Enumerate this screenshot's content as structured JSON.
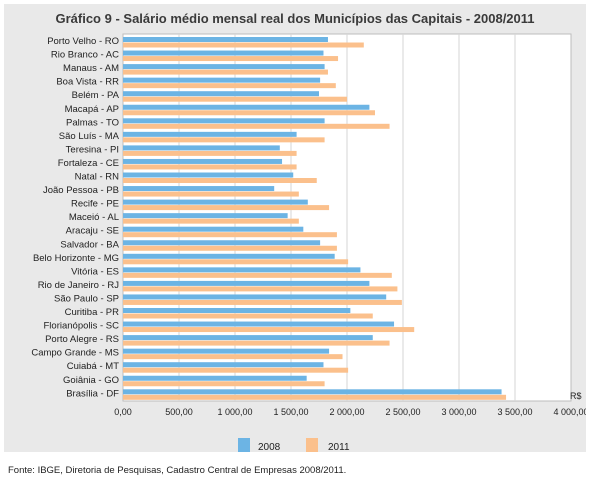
{
  "title": "Gráfico 9 - Salário médio mensal real dos Municípios das Capitais - 2008/2011",
  "source_note": "Fonte: IBGE, Diretoria de Pesquisas, Cadastro Central de Empresas 2008/2011.",
  "colors": {
    "s2008": "#6cb4e4",
    "s2011": "#fbc08c"
  },
  "chart_data": {
    "type": "bar",
    "orientation": "horizontal",
    "title": "Gráfico 9 - Salário médio mensal real dos Municípios das Capitais - 2008/2011",
    "unit_label": "R$",
    "xlim": [
      0,
      4000
    ],
    "tick_labels": [
      "0,00",
      "500,00",
      "1 000,00",
      "1 500,00",
      "2 000,00",
      "2 500,00",
      "3 000,00",
      "3 500,00",
      "4 000,00"
    ],
    "grid": true,
    "legend_position": "bottom",
    "categories": [
      "Porto Velho - RO",
      "Rio Branco - AC",
      "Manaus - AM",
      "Boa Vista - RR",
      "Belém - PA",
      "Macapá - AP",
      "Palmas - TO",
      "São Luís - MA",
      "Teresina - PI",
      "Fortaleza - CE",
      "Natal - RN",
      "João Pessoa - PB",
      "Recife - PE",
      "Maceió - AL",
      "Aracaju - SE",
      "Salvador - BA",
      "Belo Horizonte - MG",
      "Vitória - ES",
      "Rio de Janeiro - RJ",
      "São Paulo - SP",
      "Curitiba - PR",
      "Florianópolis - SC",
      "Porto Alegre - RS",
      "Campo Grande - MS",
      "Cuiabá - MT",
      "Goiânia - GO",
      "Brasília - DF"
    ],
    "series": [
      {
        "name": "2008",
        "values": [
          1830,
          1790,
          1800,
          1760,
          1750,
          2200,
          1800,
          1550,
          1400,
          1420,
          1520,
          1350,
          1650,
          1470,
          1610,
          1760,
          1890,
          2120,
          2200,
          2350,
          2030,
          2420,
          2230,
          1840,
          1790,
          1640,
          3380
        ]
      },
      {
        "name": "2011",
        "values": [
          2150,
          1920,
          1830,
          1900,
          2000,
          2250,
          2380,
          1800,
          1550,
          1550,
          1730,
          1570,
          1840,
          1570,
          1910,
          1910,
          2010,
          2400,
          2450,
          2490,
          2230,
          2600,
          2380,
          1960,
          2010,
          1800,
          3420
        ]
      }
    ]
  }
}
